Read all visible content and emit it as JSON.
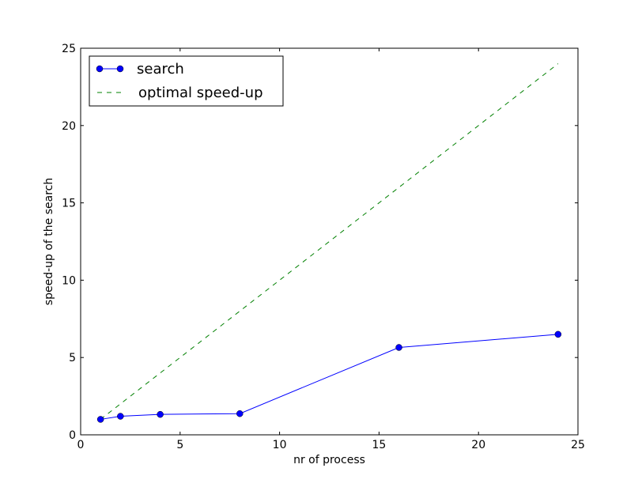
{
  "chart_data": {
    "type": "line",
    "title": "",
    "xlabel": "nr of process",
    "ylabel": "speed-up of the search",
    "xlim": [
      0,
      25
    ],
    "ylim": [
      0,
      25
    ],
    "xticks": [
      0,
      5,
      10,
      15,
      20,
      25
    ],
    "yticks": [
      0,
      5,
      10,
      15,
      20,
      25
    ],
    "grid": false,
    "legend_position": "top-left",
    "series": [
      {
        "name": "search",
        "style": "solid line with circle markers",
        "color": "#0000ff",
        "x": [
          1,
          2,
          4,
          8,
          16,
          24
        ],
        "y": [
          1.0,
          1.2,
          1.32,
          1.37,
          5.65,
          6.5
        ]
      },
      {
        "name": "optimal speed-up",
        "style": "dashed line",
        "color": "#008000",
        "x": [
          1,
          24
        ],
        "y": [
          1,
          24
        ]
      }
    ]
  }
}
